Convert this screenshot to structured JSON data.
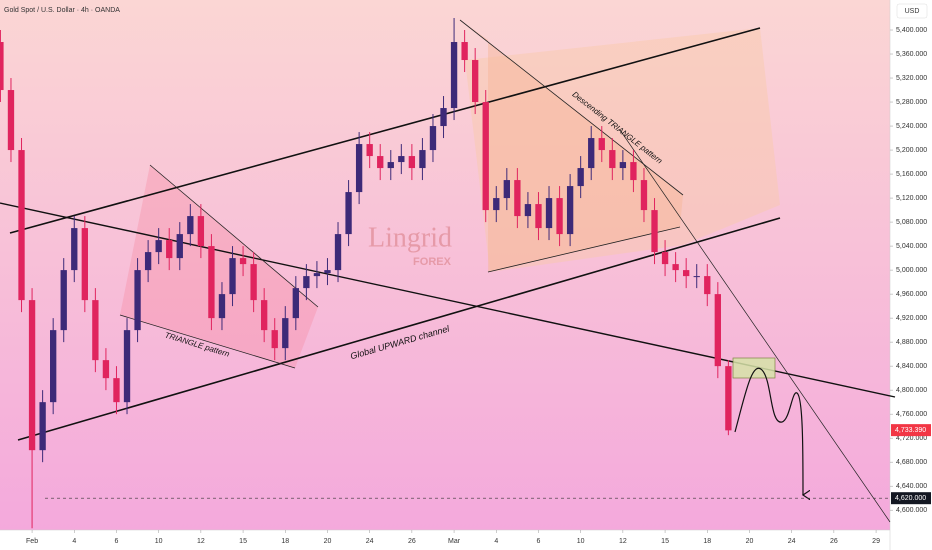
{
  "chart_data": {
    "type": "candlestick",
    "title": "Gold Spot / U.S. Dollar · 4h · OANDA",
    "currency": "USD",
    "x": [
      -1.5,
      -1,
      -0.5,
      0,
      0.5,
      1,
      1.5,
      2,
      2.5,
      3,
      3.5,
      4,
      4.5,
      5,
      5.5,
      6,
      6.5,
      7,
      7.5,
      8,
      8.5,
      9,
      9.5,
      10,
      10.5,
      11,
      11.5,
      12,
      12.5,
      13,
      13.5,
      14,
      14.5,
      15,
      15.5,
      16,
      16.5,
      17,
      17.5,
      18,
      18.5,
      19,
      19.5,
      20,
      20.5,
      21,
      21.5,
      22,
      22.5,
      23,
      23.5,
      24,
      24.5,
      25,
      25.5,
      26,
      26.5,
      27,
      27.5,
      28,
      28.5,
      29,
      29.5,
      30,
      30.5,
      31,
      31.5,
      32,
      32.5,
      33
    ],
    "open": [
      5380,
      5300,
      5200,
      4950,
      4700,
      4780,
      4900,
      5000,
      5070,
      4950,
      4850,
      4820,
      4780,
      4900,
      5000,
      5030,
      5050,
      5020,
      5060,
      5090,
      5040,
      4920,
      4960,
      5020,
      5010,
      4950,
      4900,
      4870,
      4920,
      4970,
      4990,
      4995,
      5000,
      5060,
      5130,
      5210,
      5190,
      5170,
      5180,
      5190,
      5170,
      5200,
      5240,
      5270,
      5380,
      5350,
      5280,
      5100,
      5120,
      5150,
      5090,
      5110,
      5070,
      5120,
      5060,
      5140,
      5170,
      5220,
      5200,
      5170,
      5180,
      5150,
      5100,
      5030,
      5010,
      5000,
      4990,
      4990,
      4960,
      4840
    ],
    "high": [
      5400,
      5320,
      5220,
      4970,
      4800,
      4920,
      5020,
      5090,
      5090,
      4970,
      4870,
      4840,
      4920,
      5020,
      5050,
      5070,
      5070,
      5080,
      5110,
      5110,
      5060,
      4980,
      5040,
      5040,
      5030,
      4970,
      4920,
      4940,
      4990,
      5010,
      5015,
      5020,
      5080,
      5150,
      5230,
      5230,
      5210,
      5200,
      5210,
      5210,
      5220,
      5260,
      5290,
      5420,
      5400,
      5370,
      5300,
      5140,
      5170,
      5170,
      5130,
      5130,
      5140,
      5140,
      5160,
      5190,
      5240,
      5240,
      5220,
      5200,
      5200,
      5170,
      5120,
      5050,
      5030,
      5020,
      5010,
      5010,
      4980,
      4850
    ],
    "low": [
      5280,
      5180,
      4930,
      4570,
      4680,
      4760,
      4880,
      4980,
      4930,
      4830,
      4800,
      4760,
      4760,
      4880,
      4980,
      5010,
      5000,
      5000,
      5040,
      5020,
      4900,
      4900,
      4940,
      4990,
      4930,
      4880,
      4850,
      4850,
      4900,
      4950,
      4970,
      4975,
      4980,
      5040,
      5110,
      5170,
      5150,
      5150,
      5160,
      5150,
      5150,
      5180,
      5220,
      5250,
      5330,
      5260,
      5080,
      5080,
      5100,
      5070,
      5070,
      5050,
      5050,
      5040,
      5040,
      5120,
      5150,
      5180,
      5150,
      5150,
      5130,
      5080,
      5010,
      4990,
      4980,
      4970,
      4970,
      4940,
      4820,
      4725
    ],
    "close": [
      5300,
      5200,
      4950,
      4700,
      4780,
      4900,
      5000,
      5070,
      4950,
      4850,
      4820,
      4780,
      4900,
      5000,
      5030,
      5050,
      5020,
      5060,
      5090,
      5040,
      4920,
      4960,
      5020,
      5010,
      4950,
      4900,
      4870,
      4920,
      4970,
      4990,
      4995,
      5000,
      5060,
      5130,
      5210,
      5190,
      5170,
      5180,
      5190,
      5170,
      5200,
      5240,
      5270,
      5380,
      5350,
      5280,
      5100,
      5120,
      5150,
      5090,
      5110,
      5070,
      5120,
      5060,
      5140,
      5170,
      5220,
      5200,
      5170,
      5180,
      5150,
      5100,
      5030,
      5010,
      5000,
      4990,
      4990,
      4960,
      4840,
      4733
    ],
    "up_color": "#3d2a78",
    "down_color": "#e0245e",
    "xlim": [
      -1.52,
      40.66
    ],
    "xticks": [
      {
        "value": 0,
        "label": "Feb"
      },
      {
        "value": 2,
        "label": "4"
      },
      {
        "value": 4,
        "label": "6"
      },
      {
        "value": 6,
        "label": "10"
      },
      {
        "value": 8,
        "label": "12"
      },
      {
        "value": 10,
        "label": "15"
      },
      {
        "value": 12,
        "label": "18"
      },
      {
        "value": 14,
        "label": "20"
      },
      {
        "value": 16,
        "label": "24"
      },
      {
        "value": 18,
        "label": "26"
      },
      {
        "value": 20,
        "label": "Mar"
      },
      {
        "value": 22,
        "label": "4"
      },
      {
        "value": 24,
        "label": "6"
      },
      {
        "value": 26,
        "label": "10"
      },
      {
        "value": 28,
        "label": "12"
      },
      {
        "value": 30,
        "label": "15"
      },
      {
        "value": 32,
        "label": "18"
      },
      {
        "value": 34,
        "label": "20"
      },
      {
        "value": 36,
        "label": "24"
      },
      {
        "value": 38,
        "label": "26"
      },
      {
        "value": 40,
        "label": "29"
      }
    ],
    "ylim": [
      4567,
      5450
    ],
    "yticks": [
      {
        "value": 4600,
        "label": "4,600.000"
      },
      {
        "value": 4640,
        "label": "4,640.000"
      },
      {
        "value": 4680,
        "label": "4,680.000"
      },
      {
        "value": 4720,
        "label": "4,720.000"
      },
      {
        "value": 4760,
        "label": "4,760.000"
      },
      {
        "value": 4800,
        "label": "4,800.000"
      },
      {
        "value": 4840,
        "label": "4,840.000"
      },
      {
        "value": 4880,
        "label": "4,880.000"
      },
      {
        "value": 4920,
        "label": "4,920.000"
      },
      {
        "value": 4960,
        "label": "4,960.000"
      },
      {
        "value": 5000,
        "label": "5,000.000"
      },
      {
        "value": 5040,
        "label": "5,040.000"
      },
      {
        "value": 5080,
        "label": "5,080.000"
      },
      {
        "value": 5120,
        "label": "5,120.000"
      },
      {
        "value": 5160,
        "label": "5,160.000"
      },
      {
        "value": 5200,
        "label": "5,200.000"
      },
      {
        "value": 5240,
        "label": "5,240.000"
      },
      {
        "value": 5280,
        "label": "5,280.000"
      },
      {
        "value": 5320,
        "label": "5,320.000"
      },
      {
        "value": 5360,
        "label": "5,360.000"
      },
      {
        "value": 5400,
        "label": "5,400.000"
      }
    ],
    "last_price": {
      "value": 4733.39,
      "label": "4,733.390"
    },
    "target_price": {
      "value": 4620,
      "label": "4,620.000"
    },
    "annotations": [
      "TRIANGLE pattern",
      "Global UPWARD channel",
      "Descending TRIANGLE pattern"
    ],
    "watermark": [
      "Lingrid",
      "FOREX"
    ]
  }
}
